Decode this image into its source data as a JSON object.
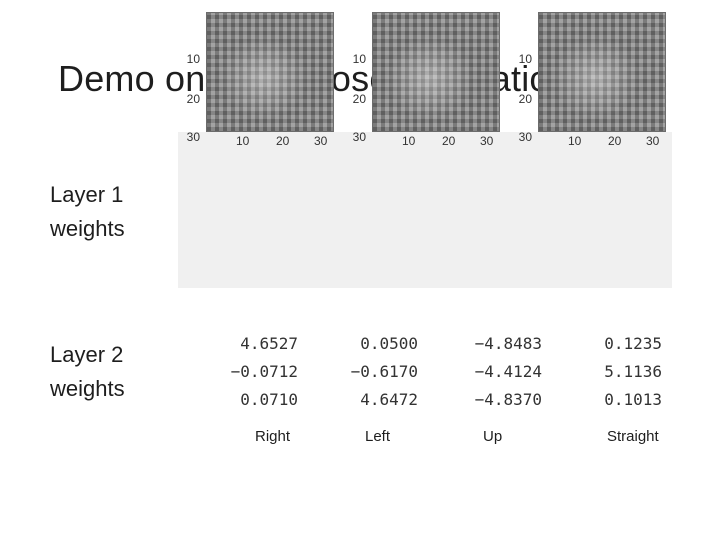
{
  "slide": {
    "title": "Demo on Face Pose Estimation",
    "layer1_label_line1": "Layer 1",
    "layer1_label_line2": "weights",
    "layer2_label_line1": "Layer 2",
    "layer2_label_line2": "weights"
  },
  "layer1_plots": {
    "y_ticks": [
      "10",
      "20",
      "30"
    ],
    "x_ticks": [
      "10",
      "20",
      "30"
    ],
    "first_plot_x_ticks": [
      "10",
      "20",
      "30"
    ]
  },
  "layer2_weights": {
    "rows": [
      [
        "4.6527",
        "0.0500",
        "−4.8483",
        "0.1235"
      ],
      [
        "−0.0712",
        "−0.6170",
        "−4.4124",
        "5.1136"
      ],
      [
        "0.0710",
        "4.6472",
        "−4.8370",
        "0.1013"
      ]
    ]
  },
  "class_labels": [
    "Right",
    "Left",
    "Up",
    "Straight"
  ]
}
